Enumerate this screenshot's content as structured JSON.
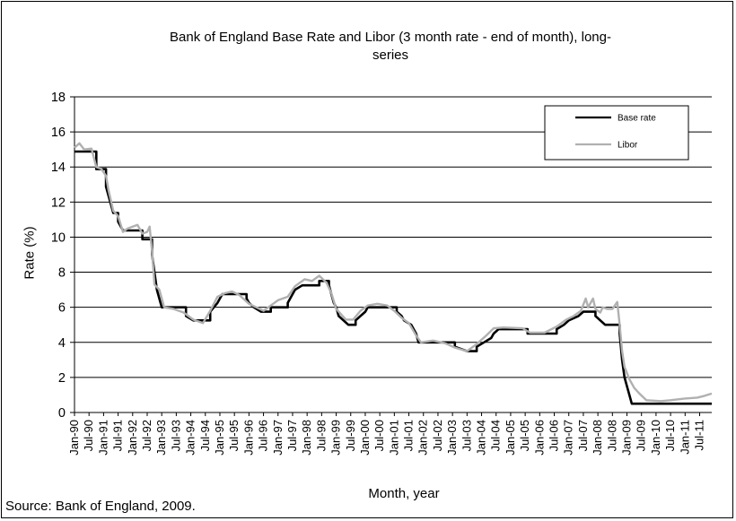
{
  "chart_data": {
    "type": "line",
    "title": "Bank of England Base Rate and Libor (3 month rate - end of month), long-series",
    "title_lines": [
      "Bank of England Base Rate and Libor (3 month rate - end of month), long-",
      "series"
    ],
    "xlabel": "Month, year",
    "ylabel": "Rate (%)",
    "ylim": [
      0,
      18
    ],
    "yticks": [
      0,
      2,
      4,
      6,
      8,
      10,
      12,
      14,
      16,
      18
    ],
    "grid": "horizontal",
    "legend_position": "top-right",
    "x_tick_labels": [
      "Jan-90",
      "Jul-90",
      "Jan-91",
      "Jul-91",
      "Jan-92",
      "Jul-92",
      "Jan-93",
      "Jul-93",
      "Jan-94",
      "Jul-94",
      "Jan-95",
      "Jul-95",
      "Jan-96",
      "Jul-96",
      "Jan-97",
      "Jul-97",
      "Jan-98",
      "Jul-98",
      "Jan-99",
      "Jul-99",
      "Jan-00",
      "Jul-00",
      "Jan-01",
      "Jul-01",
      "Jan-02",
      "Jul-02",
      "Jan-03",
      "Jul-03",
      "Jan-04",
      "Jul-04",
      "Jan-05",
      "Jul-05",
      "Jan-06",
      "Jul-06",
      "Jan-07",
      "Jul-07",
      "Jan-08",
      "Jul-08",
      "Jan-09",
      "Jul-09",
      "Jan-10",
      "Jul-10",
      "Jan-11",
      "Jul-11"
    ],
    "x_start": "1990-01",
    "x_end": "2011-12",
    "series": [
      {
        "name": "Base rate",
        "color": "#000000",
        "points": [
          [
            "1990-01",
            14.88
          ],
          [
            "1990-10",
            14.88
          ],
          [
            "1990-10",
            13.88
          ],
          [
            "1991-02",
            13.88
          ],
          [
            "1991-02",
            12.88
          ],
          [
            "1991-03",
            12.38
          ],
          [
            "1991-04",
            11.88
          ],
          [
            "1991-05",
            11.38
          ],
          [
            "1991-07",
            11.38
          ],
          [
            "1991-07",
            10.88
          ],
          [
            "1991-09",
            10.38
          ],
          [
            "1992-05",
            10.38
          ],
          [
            "1992-05",
            9.88
          ],
          [
            "1992-09",
            9.88
          ],
          [
            "1992-09",
            9.0
          ],
          [
            "1992-10",
            8.0
          ],
          [
            "1992-11",
            7.0
          ],
          [
            "1993-01",
            6.0
          ],
          [
            "1993-11",
            6.0
          ],
          [
            "1993-11",
            5.5
          ],
          [
            "1994-02",
            5.25
          ],
          [
            "1994-09",
            5.25
          ],
          [
            "1994-09",
            5.75
          ],
          [
            "1994-12",
            6.25
          ],
          [
            "1995-02",
            6.75
          ],
          [
            "1995-12",
            6.75
          ],
          [
            "1995-12",
            6.5
          ],
          [
            "1996-01",
            6.25
          ],
          [
            "1996-03",
            6.0
          ],
          [
            "1996-06",
            5.75
          ],
          [
            "1996-10",
            5.75
          ],
          [
            "1996-10",
            6.0
          ],
          [
            "1997-05",
            6.0
          ],
          [
            "1997-05",
            6.25
          ],
          [
            "1997-06",
            6.5
          ],
          [
            "1997-07",
            6.75
          ],
          [
            "1997-08",
            7.0
          ],
          [
            "1997-11",
            7.25
          ],
          [
            "1998-06",
            7.25
          ],
          [
            "1998-06",
            7.5
          ],
          [
            "1998-10",
            7.5
          ],
          [
            "1998-10",
            7.25
          ],
          [
            "1998-11",
            6.75
          ],
          [
            "1998-12",
            6.25
          ],
          [
            "1999-01",
            6.0
          ],
          [
            "1999-02",
            5.5
          ],
          [
            "1999-04",
            5.25
          ],
          [
            "1999-06",
            5.0
          ],
          [
            "1999-09",
            5.0
          ],
          [
            "1999-09",
            5.25
          ],
          [
            "1999-11",
            5.5
          ],
          [
            "2000-01",
            5.75
          ],
          [
            "2000-02",
            6.0
          ],
          [
            "2001-02",
            6.0
          ],
          [
            "2001-02",
            5.75
          ],
          [
            "2001-04",
            5.5
          ],
          [
            "2001-05",
            5.25
          ],
          [
            "2001-08",
            5.0
          ],
          [
            "2001-09",
            4.75
          ],
          [
            "2001-10",
            4.5
          ],
          [
            "2001-11",
            4.0
          ],
          [
            "2003-02",
            4.0
          ],
          [
            "2003-02",
            3.75
          ],
          [
            "2003-07",
            3.5
          ],
          [
            "2003-11",
            3.5
          ],
          [
            "2003-11",
            3.75
          ],
          [
            "2004-02",
            4.0
          ],
          [
            "2004-05",
            4.25
          ],
          [
            "2004-06",
            4.5
          ],
          [
            "2004-08",
            4.75
          ],
          [
            "2005-08",
            4.75
          ],
          [
            "2005-08",
            4.5
          ],
          [
            "2006-08",
            4.5
          ],
          [
            "2006-08",
            4.75
          ],
          [
            "2006-11",
            5.0
          ],
          [
            "2007-01",
            5.25
          ],
          [
            "2007-05",
            5.5
          ],
          [
            "2007-07",
            5.75
          ],
          [
            "2007-12",
            5.75
          ],
          [
            "2007-12",
            5.5
          ],
          [
            "2008-02",
            5.25
          ],
          [
            "2008-04",
            5.0
          ],
          [
            "2008-10",
            5.0
          ],
          [
            "2008-10",
            4.5
          ],
          [
            "2008-11",
            3.0
          ],
          [
            "2008-12",
            2.0
          ],
          [
            "2009-01",
            1.5
          ],
          [
            "2009-02",
            1.0
          ],
          [
            "2009-03",
            0.5
          ],
          [
            "2011-12",
            0.5
          ]
        ]
      },
      {
        "name": "Libor",
        "color": "#b0b0b0",
        "points": [
          [
            "1990-01",
            15.1
          ],
          [
            "1990-03",
            15.35
          ],
          [
            "1990-05",
            15.0
          ],
          [
            "1990-08",
            15.05
          ],
          [
            "1990-10",
            14.0
          ],
          [
            "1990-12",
            13.9
          ],
          [
            "1991-02",
            13.5
          ],
          [
            "1991-03",
            12.7
          ],
          [
            "1991-05",
            11.5
          ],
          [
            "1991-07",
            11.2
          ],
          [
            "1991-09",
            10.3
          ],
          [
            "1991-11",
            10.5
          ],
          [
            "1992-01",
            10.6
          ],
          [
            "1992-03",
            10.7
          ],
          [
            "1992-05",
            10.2
          ],
          [
            "1992-07",
            10.3
          ],
          [
            "1992-08",
            10.6
          ],
          [
            "1992-09",
            9.2
          ],
          [
            "1992-10",
            7.3
          ],
          [
            "1992-12",
            7.0
          ],
          [
            "1993-02",
            6.0
          ],
          [
            "1993-06",
            5.9
          ],
          [
            "1993-10",
            5.7
          ],
          [
            "1994-02",
            5.3
          ],
          [
            "1994-06",
            5.1
          ],
          [
            "1994-09",
            5.8
          ],
          [
            "1994-12",
            6.6
          ],
          [
            "1995-03",
            6.8
          ],
          [
            "1995-06",
            6.9
          ],
          [
            "1995-09",
            6.7
          ],
          [
            "1996-01",
            6.2
          ],
          [
            "1996-04",
            6.0
          ],
          [
            "1996-07",
            5.8
          ],
          [
            "1996-10",
            6.1
          ],
          [
            "1997-01",
            6.4
          ],
          [
            "1997-05",
            6.6
          ],
          [
            "1997-08",
            7.2
          ],
          [
            "1997-12",
            7.6
          ],
          [
            "1998-03",
            7.5
          ],
          [
            "1998-06",
            7.8
          ],
          [
            "1998-09",
            7.4
          ],
          [
            "1998-11",
            6.8
          ],
          [
            "1999-01",
            5.9
          ],
          [
            "1999-05",
            5.3
          ],
          [
            "1999-08",
            5.3
          ],
          [
            "1999-11",
            5.8
          ],
          [
            "2000-02",
            6.1
          ],
          [
            "2000-06",
            6.2
          ],
          [
            "2000-10",
            6.1
          ],
          [
            "2001-01",
            5.8
          ],
          [
            "2001-04",
            5.4
          ],
          [
            "2001-07",
            5.1
          ],
          [
            "2001-10",
            4.4
          ],
          [
            "2001-12",
            4.0
          ],
          [
            "2002-05",
            4.1
          ],
          [
            "2002-10",
            3.95
          ],
          [
            "2003-02",
            3.7
          ],
          [
            "2003-07",
            3.5
          ],
          [
            "2003-11",
            3.9
          ],
          [
            "2004-03",
            4.4
          ],
          [
            "2004-06",
            4.8
          ],
          [
            "2004-10",
            4.85
          ],
          [
            "2005-06",
            4.8
          ],
          [
            "2005-09",
            4.55
          ],
          [
            "2006-03",
            4.55
          ],
          [
            "2006-08",
            4.9
          ],
          [
            "2006-12",
            5.3
          ],
          [
            "2007-03",
            5.5
          ],
          [
            "2007-06",
            5.8
          ],
          [
            "2007-08",
            6.5
          ],
          [
            "2007-09",
            6.0
          ],
          [
            "2007-11",
            6.5
          ],
          [
            "2007-12",
            5.9
          ],
          [
            "2008-02",
            5.7
          ],
          [
            "2008-03",
            6.0
          ],
          [
            "2008-05",
            5.9
          ],
          [
            "2008-07",
            5.9
          ],
          [
            "2008-09",
            6.3
          ],
          [
            "2008-10",
            5.0
          ],
          [
            "2008-11",
            3.5
          ],
          [
            "2008-12",
            2.6
          ],
          [
            "2009-02",
            1.9
          ],
          [
            "2009-04",
            1.4
          ],
          [
            "2009-06",
            1.1
          ],
          [
            "2009-09",
            0.7
          ],
          [
            "2010-03",
            0.65
          ],
          [
            "2010-07",
            0.7
          ],
          [
            "2011-01",
            0.8
          ],
          [
            "2011-06",
            0.85
          ],
          [
            "2011-09",
            0.95
          ],
          [
            "2011-12",
            1.08
          ]
        ]
      }
    ]
  },
  "source": "Source: Bank of England, 2009."
}
